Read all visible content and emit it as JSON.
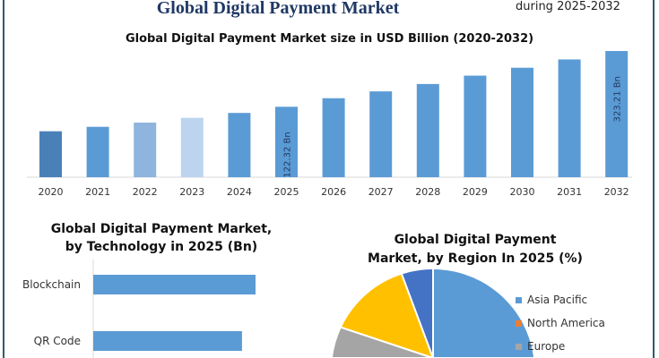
{
  "header": {
    "title": "Global Digital Payment Market",
    "corner_note": "during 2025-2032"
  },
  "chart_data": [
    {
      "type": "bar",
      "title": "Global Digital Payment Market size in USD Billion (2020-2032)",
      "categories": [
        "2020",
        "2021",
        "2022",
        "2023",
        "2024",
        "2025",
        "2026",
        "2027",
        "2028",
        "2029",
        "2030",
        "2031",
        "2032"
      ],
      "values": [
        60,
        70,
        80,
        92,
        105,
        122.32,
        148,
        170,
        195,
        225,
        255,
        288,
        323.21
      ],
      "data_labels": {
        "2025": "122.32 Bn",
        "2032": "323.21 Bn"
      },
      "colors": [
        "#4a80b8",
        "#5b9bd5",
        "#8fb4dd",
        "#bdd4ee",
        "#5b9bd5",
        "#5b9bd5",
        "#5b9bd5",
        "#5b9bd5",
        "#5b9bd5",
        "#5b9bd5",
        "#5b9bd5",
        "#5b9bd5",
        "#5b9bd5"
      ],
      "grid": false
    },
    {
      "type": "bar",
      "orientation": "horizontal",
      "title": "Global Digital Payment Market, by Technology in 2025 (Bn)",
      "categories": [
        "Blockchain",
        "QR Code"
      ],
      "values": [
        60,
        55
      ],
      "color": "#5b9bd5"
    },
    {
      "type": "pie",
      "title": "Global Digital Payment Market, by Region In 2025 (%)",
      "slices": [
        {
          "name": "Asia Pacific",
          "value": 42,
          "color": "#5b9bd5"
        },
        {
          "name": "North America",
          "value": 22,
          "color": "#ed7d31"
        },
        {
          "name": "Europe",
          "value": 18,
          "color": "#a5a5a5"
        },
        {
          "value": 13,
          "color": "#ffc000"
        },
        {
          "value": 5,
          "color": "#4472c4"
        }
      ],
      "legend_position": "right"
    }
  ]
}
